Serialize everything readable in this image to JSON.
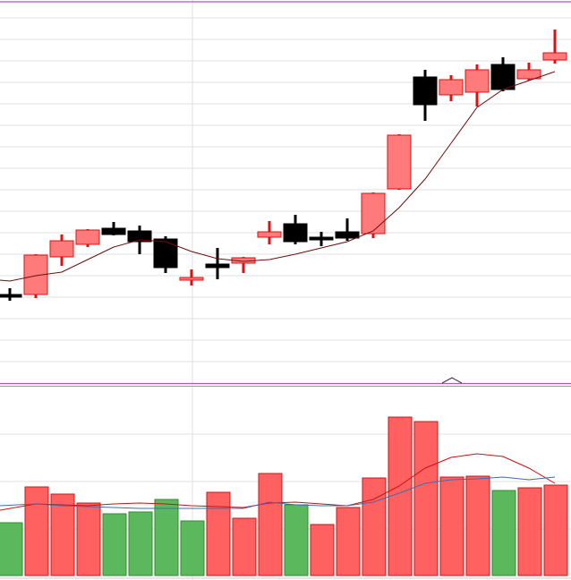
{
  "chart_data": [
    {
      "type": "candlestick",
      "title": "",
      "xlabel": "",
      "ylabel": "",
      "ylim": [
        1.2,
        44.0
      ],
      "grid": true,
      "up_color": "#ff7b7b",
      "up_border": "#dd1111",
      "down_color": "#000000",
      "ma_color": "#6b0f0f",
      "candles": [
        {
          "o": 11.1,
          "h": 11.8,
          "l": 10.4,
          "c": 11.0
        },
        {
          "o": 11.1,
          "h": 15.6,
          "l": 10.7,
          "c": 15.5
        },
        {
          "o": 15.3,
          "h": 17.8,
          "l": 14.3,
          "c": 17.1
        },
        {
          "o": 16.7,
          "h": 18.4,
          "l": 16.4,
          "c": 18.3
        },
        {
          "o": 18.5,
          "h": 19.2,
          "l": 17.7,
          "c": 17.8
        },
        {
          "o": 18.2,
          "h": 18.8,
          "l": 15.6,
          "c": 17.0
        },
        {
          "o": 17.3,
          "h": 17.6,
          "l": 13.5,
          "c": 14.1
        },
        {
          "o": 12.7,
          "h": 13.9,
          "l": 12.1,
          "c": 13.0
        },
        {
          "o": 14.5,
          "h": 16.3,
          "l": 12.8,
          "c": 14.1
        },
        {
          "o": 14.6,
          "h": 15.3,
          "l": 13.5,
          "c": 15.2
        },
        {
          "o": 17.5,
          "h": 19.3,
          "l": 16.7,
          "c": 18.1
        },
        {
          "o": 19.0,
          "h": 20.0,
          "l": 16.7,
          "c": 17.0
        },
        {
          "o": 17.5,
          "h": 18.1,
          "l": 16.5,
          "c": 17.2
        },
        {
          "o": 18.1,
          "h": 19.6,
          "l": 17.1,
          "c": 17.4
        },
        {
          "o": 17.9,
          "h": 22.5,
          "l": 17.4,
          "c": 22.4
        },
        {
          "o": 22.9,
          "h": 29.0,
          "l": 22.8,
          "c": 28.9
        },
        {
          "o": 35.4,
          "h": 36.2,
          "l": 30.5,
          "c": 32.3
        },
        {
          "o": 33.4,
          "h": 35.6,
          "l": 32.7,
          "c": 35.1
        },
        {
          "o": 33.7,
          "h": 36.8,
          "l": 32.1,
          "c": 36.2
        },
        {
          "o": 36.8,
          "h": 37.6,
          "l": 33.8,
          "c": 34.0
        },
        {
          "o": 35.2,
          "h": 37.0,
          "l": 35.0,
          "c": 36.2
        },
        {
          "o": 37.3,
          "h": 40.7,
          "l": 36.9,
          "c": 38.1
        }
      ],
      "moving_average": [
        12.6,
        13.2,
        13.6,
        15.0,
        16.4,
        17.2,
        17.0,
        15.9,
        15.1,
        14.8,
        15.0,
        15.6,
        16.3,
        17.0,
        18.2,
        20.8,
        24.0,
        28.0,
        32.0,
        34.0,
        35.0,
        36.0
      ]
    },
    {
      "type": "bar",
      "title": "",
      "xlabel": "",
      "ylabel": "",
      "ylim": [
        0,
        211
      ],
      "grid": true,
      "colors": {
        "red": "#ff6060",
        "green": "#5cb85c"
      },
      "values": [
        59,
        99,
        91,
        81,
        69,
        71,
        85,
        61,
        93,
        64,
        114,
        79,
        57,
        76,
        109,
        177,
        172,
        110,
        111,
        95,
        98,
        101
      ],
      "bar_colors": [
        "green",
        "red",
        "red",
        "red",
        "green",
        "green",
        "green",
        "green",
        "red",
        "red",
        "red",
        "green",
        "red",
        "red",
        "red",
        "red",
        "red",
        "red",
        "red",
        "green",
        "red",
        "red"
      ],
      "series": [
        {
          "name": "ma-red",
          "color": "#cc1111",
          "values": [
            73,
            80,
            79,
            78,
            80,
            81,
            80,
            78,
            77,
            76,
            81,
            82,
            80,
            78,
            85,
            100,
            120,
            132,
            136,
            133,
            120,
            103
          ]
        },
        {
          "name": "ma-blue",
          "color": "#3a6fb0",
          "values": [
            78,
            80,
            78,
            77,
            76,
            75,
            75,
            75,
            75,
            75,
            82,
            79,
            78,
            78,
            82,
            92,
            103,
            107,
            108,
            110,
            107,
            110
          ]
        }
      ]
    }
  ]
}
